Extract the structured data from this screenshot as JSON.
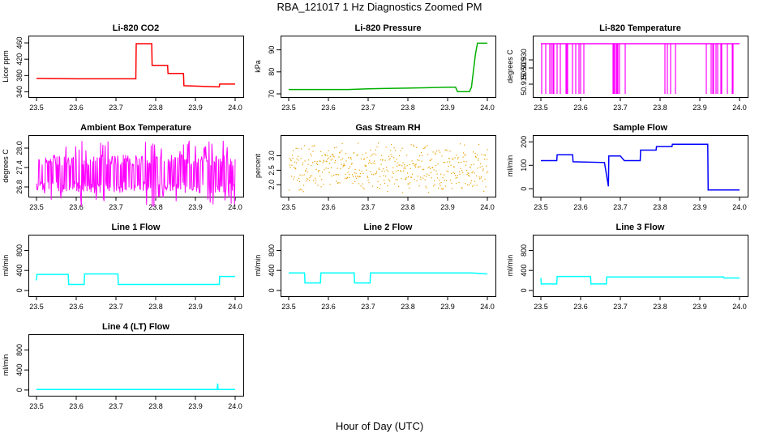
{
  "figure": {
    "title": "RBA_121017  1 Hz Diagnostics Zoomed PM",
    "xlabel": "Hour of Day (UTC)"
  },
  "chart_data": [
    {
      "type": "line",
      "title": "Li-820 CO2",
      "ylabel": "Licor ppm",
      "color": "#ff0000",
      "xlim": [
        23.5,
        24.0
      ],
      "ylim": [
        335,
        470
      ],
      "xticks": [
        23.5,
        23.6,
        23.7,
        23.8,
        23.9,
        24.0
      ],
      "xtick_labels": [
        "23.5",
        "23.6",
        "23.7",
        "23.8",
        "23.9",
        "24.0"
      ],
      "yticks": [
        340,
        380,
        420,
        460
      ],
      "ytick_labels": [
        "340",
        "380",
        "420",
        "460"
      ],
      "series": [
        {
          "x": [
            23.5,
            23.6,
            23.7,
            23.75,
            23.751,
            23.79,
            23.791,
            23.83,
            23.831,
            23.87,
            23.871,
            23.93,
            23.96,
            23.961,
            24.0
          ],
          "y": [
            373,
            372,
            372,
            372,
            458,
            458,
            405,
            405,
            385,
            385,
            355,
            353,
            352,
            359,
            359
          ]
        }
      ]
    },
    {
      "type": "line",
      "title": "Li-820 Pressure",
      "ylabel": "kPa",
      "color": "#00b000",
      "xlim": [
        23.5,
        24.0
      ],
      "ylim": [
        70,
        95
      ],
      "xticks": [
        23.5,
        23.6,
        23.7,
        23.8,
        23.9,
        24.0
      ],
      "xtick_labels": [
        "23.5",
        "23.6",
        "23.7",
        "23.8",
        "23.9",
        "24.0"
      ],
      "yticks": [
        70,
        80,
        90
      ],
      "ytick_labels": [
        "70",
        "80",
        "90"
      ],
      "series": [
        {
          "x": [
            23.5,
            23.6,
            23.65,
            23.7,
            23.75,
            23.8,
            23.85,
            23.9,
            23.92,
            23.925,
            23.955,
            23.96,
            23.97,
            23.975,
            24.0
          ],
          "y": [
            72,
            72,
            72,
            72.3,
            72.5,
            72.6,
            72.8,
            73,
            73,
            71,
            71,
            73,
            88,
            93,
            93
          ]
        }
      ]
    },
    {
      "type": "line",
      "title": "Li-820 Temperature",
      "ylabel": "degrees C",
      "color": "#ff00ff",
      "xlim": [
        23.5,
        24.0
      ],
      "ylim": [
        50.909,
        50.943
      ],
      "xticks": [
        23.5,
        23.6,
        23.7,
        23.8,
        23.9,
        24.0
      ],
      "xtick_labels": [
        "23.5",
        "23.6",
        "23.7",
        "23.8",
        "23.9",
        "24.0"
      ],
      "yticks": [
        50.915,
        50.925,
        50.93
      ],
      "ytick_labels": [
        "50.915",
        "50.925",
        "50.930"
      ],
      "series": [
        {
          "x": [
            23.5,
            24.0
          ],
          "y": [
            50.94,
            50.94
          ]
        }
      ],
      "noise": "binary"
    },
    {
      "type": "line",
      "title": "Ambient Box Temperature",
      "ylabel": "degrees C",
      "color": "#ff00ff",
      "xlim": [
        23.5,
        24.0
      ],
      "ylim": [
        26.6,
        28.3
      ],
      "xticks": [
        23.5,
        23.6,
        23.7,
        23.8,
        23.9,
        24.0
      ],
      "xtick_labels": [
        "23.5",
        "23.6",
        "23.7",
        "23.8",
        "23.9",
        "24.0"
      ],
      "yticks": [
        26.8,
        27.4,
        28.0
      ],
      "ytick_labels": [
        "26.8",
        "27.4",
        "28.0"
      ],
      "series": [
        {
          "x": [
            23.5,
            24.0
          ],
          "y": [
            27.2,
            27.2
          ]
        }
      ],
      "noise": "dense"
    },
    {
      "type": "scatter",
      "title": "Gas Stream RH",
      "ylabel": "percent",
      "color": "#e8a000",
      "xlim": [
        23.5,
        24.0
      ],
      "ylim": [
        1.7,
        3.6
      ],
      "xticks": [
        23.5,
        23.6,
        23.7,
        23.8,
        23.9,
        24.0
      ],
      "xtick_labels": [
        "23.5",
        "23.6",
        "23.7",
        "23.8",
        "23.9",
        "24.0"
      ],
      "yticks": [
        2.0,
        2.5,
        3.0
      ],
      "ytick_labels": [
        "2.0",
        "2.5",
        "3.0"
      ],
      "series": [
        {
          "x": [
            23.5,
            24.0
          ],
          "y": [
            2.6,
            2.6
          ]
        }
      ],
      "noise": "dots"
    },
    {
      "type": "line",
      "title": "Sample Flow",
      "ylabel": "ml/min",
      "color": "#0000ff",
      "xlim": [
        23.5,
        24.0
      ],
      "ylim": [
        -20,
        215
      ],
      "xticks": [
        23.5,
        23.6,
        23.7,
        23.8,
        23.9,
        24.0
      ],
      "xtick_labels": [
        "23.5",
        "23.6",
        "23.7",
        "23.8",
        "23.9",
        "24.0"
      ],
      "yticks": [
        0,
        100,
        200
      ],
      "ytick_labels": [
        "0",
        "100",
        "200"
      ],
      "series": [
        {
          "x": [
            23.5,
            23.54,
            23.541,
            23.58,
            23.581,
            23.66,
            23.67,
            23.671,
            23.675,
            23.68,
            23.7,
            23.71,
            23.711,
            23.75,
            23.751,
            23.79,
            23.791,
            23.83,
            23.831,
            23.92,
            23.921,
            24.0
          ],
          "y": [
            120,
            120,
            145,
            145,
            115,
            112,
            10,
            140,
            140,
            140,
            140,
            120,
            120,
            120,
            165,
            165,
            180,
            180,
            190,
            190,
            -5,
            -5
          ]
        }
      ]
    },
    {
      "type": "line",
      "title": "Line 1 Flow",
      "ylabel": "ml/min",
      "color": "#00ffff",
      "xlim": [
        23.5,
        24.0
      ],
      "ylim": [
        -50,
        1050
      ],
      "xticks": [
        23.5,
        23.6,
        23.7,
        23.8,
        23.9,
        24.0
      ],
      "xtick_labels": [
        "23.5",
        "23.6",
        "23.7",
        "23.8",
        "23.9",
        "24.0"
      ],
      "yticks": [
        0,
        400,
        800
      ],
      "ytick_labels": [
        "0",
        "400",
        "800"
      ],
      "series": [
        {
          "x": [
            23.5,
            23.501,
            23.58,
            23.581,
            23.62,
            23.621,
            23.705,
            23.706,
            23.96,
            23.961,
            24.0
          ],
          "y": [
            200,
            320,
            320,
            120,
            120,
            330,
            330,
            120,
            120,
            280,
            280
          ]
        }
      ]
    },
    {
      "type": "line",
      "title": "Line 2 Flow",
      "ylabel": "ml/min",
      "color": "#00ffff",
      "xlim": [
        23.5,
        24.0
      ],
      "ylim": [
        -50,
        1050
      ],
      "xticks": [
        23.5,
        23.6,
        23.7,
        23.8,
        23.9,
        24.0
      ],
      "xtick_labels": [
        "23.5",
        "23.6",
        "23.7",
        "23.8",
        "23.9",
        "24.0"
      ],
      "yticks": [
        0,
        400,
        800
      ],
      "ytick_labels": [
        "0",
        "400",
        "800"
      ],
      "series": [
        {
          "x": [
            23.5,
            23.54,
            23.541,
            23.58,
            23.581,
            23.665,
            23.666,
            23.705,
            23.706,
            23.96,
            24.0
          ],
          "y": [
            350,
            350,
            150,
            150,
            350,
            350,
            150,
            150,
            350,
            350,
            330
          ]
        }
      ]
    },
    {
      "type": "line",
      "title": "Line 3 Flow",
      "ylabel": "ml/min",
      "color": "#00ffff",
      "xlim": [
        23.5,
        24.0
      ],
      "ylim": [
        -50,
        1050
      ],
      "xticks": [
        23.5,
        23.6,
        23.7,
        23.8,
        23.9,
        24.0
      ],
      "xtick_labels": [
        "23.5",
        "23.6",
        "23.7",
        "23.8",
        "23.9",
        "24.0"
      ],
      "yticks": [
        0,
        400,
        800
      ],
      "ytick_labels": [
        "0",
        "400",
        "800"
      ],
      "series": [
        {
          "x": [
            23.5,
            23.501,
            23.54,
            23.541,
            23.625,
            23.626,
            23.665,
            23.666,
            23.96,
            23.961,
            24.0
          ],
          "y": [
            250,
            130,
            130,
            280,
            280,
            130,
            130,
            270,
            270,
            250,
            250
          ]
        }
      ]
    },
    {
      "type": "line",
      "title": "Line 4 (LT) Flow",
      "ylabel": "ml/min",
      "color": "#00ffff",
      "xlim": [
        23.5,
        24.0
      ],
      "ylim": [
        -50,
        1050
      ],
      "xticks": [
        23.5,
        23.6,
        23.7,
        23.8,
        23.9,
        24.0
      ],
      "xtick_labels": [
        "23.5",
        "23.6",
        "23.7",
        "23.8",
        "23.9",
        "24.0"
      ],
      "yticks": [
        0,
        400,
        800
      ],
      "ytick_labels": [
        "0",
        "400",
        "800"
      ],
      "series": [
        {
          "x": [
            23.5,
            23.955,
            23.956,
            23.957,
            24.0
          ],
          "y": [
            10,
            10,
            130,
            10,
            10
          ]
        }
      ]
    }
  ]
}
